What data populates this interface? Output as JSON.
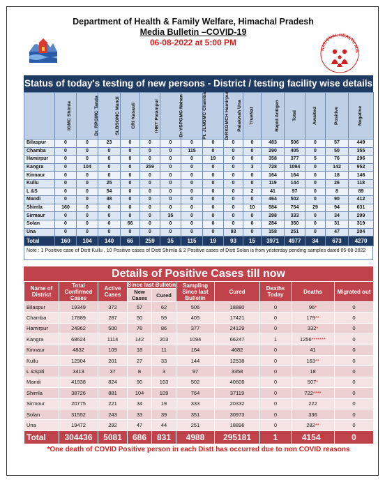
{
  "header": {
    "department": "Department of Health & Family Welfare, Himachal Pradesh",
    "bulletin": "Media Bulletin –COVID-19",
    "datetime": "06-08-2022 at 5:00 PM",
    "nhm_logo_text": "NATIONAL HEALTH MISSION"
  },
  "testing": {
    "title": "Status of today's testing of new persons - District / testing facility wise details",
    "columns": [
      "",
      "IGMC Shimla",
      "Dr. RPGMC Tanda",
      "SLBSGMC Mandi",
      "CRI Kasauli",
      "IHBT Palampur",
      "Dr YSPGMC Nahan",
      "Pt. JLNGMC Chamba",
      "DrRKGMCH Hamirpur",
      "Palakwah Una",
      "TrueNat",
      "Rapid Antigen",
      "Total",
      "Awaited",
      "Positive",
      "Negative"
    ],
    "rows": [
      [
        "Bilaspur",
        "0",
        "0",
        "23",
        "0",
        "0",
        "0",
        "0",
        "0",
        "0",
        "0",
        "483",
        "506",
        "0",
        "57",
        "449"
      ],
      [
        "Chamba",
        "0",
        "0",
        "0",
        "0",
        "0",
        "0",
        "115",
        "0",
        "0",
        "0",
        "290",
        "405",
        "0",
        "50",
        "355"
      ],
      [
        "Hamirpur",
        "0",
        "0",
        "0",
        "0",
        "0",
        "0",
        "0",
        "19",
        "0",
        "0",
        "358",
        "377",
        "5",
        "76",
        "296"
      ],
      [
        "Kangra",
        "0",
        "104",
        "0",
        "0",
        "259",
        "0",
        "0",
        "0",
        "0",
        "3",
        "728",
        "1094",
        "0",
        "142",
        "952"
      ],
      [
        "Kinnaur",
        "0",
        "0",
        "0",
        "0",
        "0",
        "0",
        "0",
        "0",
        "0",
        "0",
        "164",
        "164",
        "0",
        "18",
        "146"
      ],
      [
        "Kullu",
        "0",
        "0",
        "25",
        "0",
        "0",
        "0",
        "0",
        "0",
        "0",
        "0",
        "119",
        "144",
        "0",
        "26",
        "118"
      ],
      [
        "L &S",
        "0",
        "0",
        "54",
        "0",
        "0",
        "0",
        "0",
        "0",
        "0",
        "2",
        "41",
        "97",
        "0",
        "8",
        "89"
      ],
      [
        "Mandi",
        "0",
        "0",
        "38",
        "0",
        "0",
        "0",
        "0",
        "0",
        "0",
        "0",
        "464",
        "502",
        "0",
        "90",
        "412"
      ],
      [
        "Shimla",
        "160",
        "0",
        "0",
        "0",
        "0",
        "0",
        "0",
        "0",
        "0",
        "10",
        "584",
        "754",
        "29",
        "94",
        "631"
      ],
      [
        "Sirmaur",
        "0",
        "0",
        "0",
        "0",
        "0",
        "35",
        "0",
        "0",
        "0",
        "0",
        "298",
        "333",
        "0",
        "34",
        "299"
      ],
      [
        "Solan",
        "0",
        "0",
        "0",
        "66",
        "0",
        "0",
        "0",
        "0",
        "0",
        "0",
        "284",
        "350",
        "0",
        "31",
        "319"
      ],
      [
        "Una",
        "0",
        "0",
        "0",
        "0",
        "0",
        "0",
        "0",
        "0",
        "93",
        "0",
        "158",
        "251",
        "0",
        "47",
        "204"
      ]
    ],
    "total": [
      "Total",
      "160",
      "104",
      "140",
      "66",
      "259",
      "35",
      "115",
      "19",
      "93",
      "15",
      "3971",
      "4977",
      "34",
      "673",
      "4270"
    ],
    "note": "Note : 1 Positive case of Distt Kullu , 10  Positive cases of Distt Shimla & 2  Positive cases of Distt Solan is from yesterday pending samples dated 05-08-2022"
  },
  "positive": {
    "title": "Details of Positive Cases till now",
    "headers": {
      "district": "Name of District",
      "total": "Total Confirmed Cases",
      "active": "Active Cases",
      "since": "Since last Bulletin",
      "new": "New Cases",
      "cured_sub": "Cured",
      "sampling": "Sampling Since last Bulletin",
      "cured": "Cured",
      "deaths_today": "Deaths Today",
      "deaths": "Deaths",
      "migrated": "Migrated out"
    },
    "rows": [
      {
        "d": "Bilaspur",
        "total": "19349",
        "active": "372",
        "new": "57",
        "cured_s": "62",
        "sampling": "506",
        "cured": "18880",
        "dt": "0",
        "deaths": "96",
        "stars": "*",
        "mig": "0"
      },
      {
        "d": "Chamba",
        "total": "17889",
        "active": "287",
        "new": "50",
        "cured_s": "59",
        "sampling": "405",
        "cured": "17421",
        "dt": "0",
        "deaths": "179",
        "stars": "**",
        "mig": "0"
      },
      {
        "d": "Hamirpur",
        "total": "24962",
        "active": "500",
        "new": "76",
        "cured_s": "86",
        "sampling": "377",
        "cured": "24129",
        "dt": "0",
        "deaths": "332",
        "stars": "*",
        "mig": "0"
      },
      {
        "d": "Kangra",
        "total": "68624",
        "active": "1114",
        "new": "142",
        "cured_s": "203",
        "sampling": "1094",
        "cured": "66247",
        "dt": "1",
        "deaths": "1256",
        "stars": "*******",
        "mig": "0"
      },
      {
        "d": "Kinnaur",
        "total": "4832",
        "active": "109",
        "new": "18",
        "cured_s": "11",
        "sampling": "164",
        "cured": "4682",
        "dt": "0",
        "deaths": "41",
        "stars": "",
        "mig": "0"
      },
      {
        "d": "Kullu",
        "total": "12904",
        "active": "201",
        "new": "27",
        "cured_s": "33",
        "sampling": "144",
        "cured": "12538",
        "dt": "0",
        "deaths": "163",
        "stars": "**",
        "mig": "0"
      },
      {
        "d": "L &Spiti",
        "total": "3413",
        "active": "37",
        "new": "8",
        "cured_s": "3",
        "sampling": "97",
        "cured": "3358",
        "dt": "0",
        "deaths": "18",
        "stars": "",
        "mig": "0"
      },
      {
        "d": "Mandi",
        "total": "41938",
        "active": "824",
        "new": "90",
        "cured_s": "163",
        "sampling": "502",
        "cured": "40606",
        "dt": "0",
        "deaths": "507",
        "stars": "*",
        "mig": "0"
      },
      {
        "d": "Shimla",
        "total": "38726",
        "active": "881",
        "new": "104",
        "cured_s": "109",
        "sampling": "764",
        "cured": "37119",
        "dt": "0",
        "deaths": "722",
        "stars": "****",
        "mig": "0"
      },
      {
        "d": "Sirmour",
        "total": "20775",
        "active": "221",
        "new": "34",
        "cured_s": "19",
        "sampling": "333",
        "cured": "20332",
        "dt": "0",
        "deaths": "222",
        "stars": "",
        "mig": "0"
      },
      {
        "d": "Solan",
        "total": "31552",
        "active": "243",
        "new": "33",
        "cured_s": "39",
        "sampling": "351",
        "cured": "30973",
        "dt": "0",
        "deaths": "336",
        "stars": "",
        "mig": "0"
      },
      {
        "d": "Una",
        "total": "19472",
        "active": "292",
        "new": "47",
        "cured_s": "44",
        "sampling": "251",
        "cured": "18896",
        "dt": "0",
        "deaths": "282",
        "stars": "**",
        "mig": "0"
      }
    ],
    "total": {
      "d": "Total",
      "total": "304436",
      "active": "5081",
      "new": "686",
      "cured_s": "831",
      "sampling": "4988",
      "cured": "295181",
      "dt": "1",
      "deaths": "4154",
      "stars": "*",
      "mig": "0"
    },
    "note": "*One death of COVID Positive person in each Distt has occurred due to non COVID reasons"
  },
  "colors": {
    "navy": "#1f3a63",
    "crimson": "#c0424a",
    "alert_red": "#d21f1f"
  }
}
